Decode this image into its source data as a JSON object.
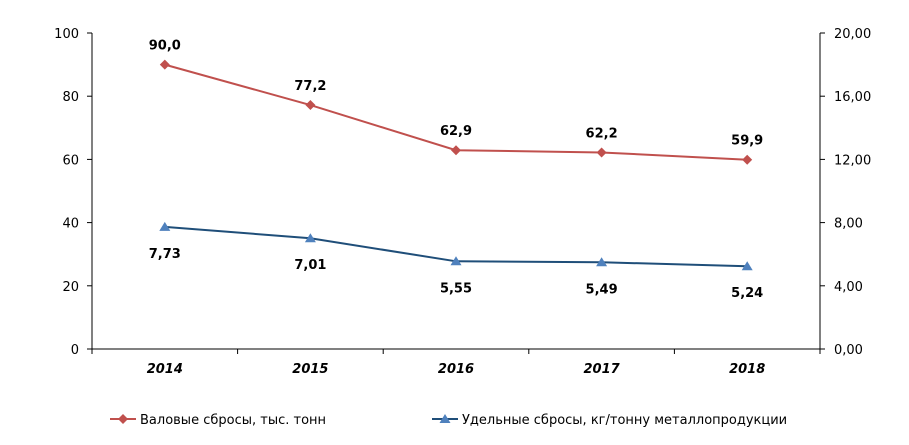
{
  "chart_data": {
    "type": "line",
    "categories": [
      "2014",
      "2015",
      "2016",
      "2017",
      "2018"
    ],
    "y_left": {
      "range": [
        0,
        100
      ],
      "ticks": [
        "0",
        "20",
        "40",
        "60",
        "80",
        "100"
      ]
    },
    "y_right": {
      "range": [
        0,
        20
      ],
      "ticks": [
        "0,00",
        "4,00",
        "8,00",
        "12,00",
        "16,00",
        "20,00"
      ]
    },
    "series": [
      {
        "name": "Валовые сбросы, тыс. тонн",
        "axis": "left",
        "color": "#C0504D",
        "marker": "diamond",
        "values": [
          90.0,
          77.2,
          62.9,
          62.2,
          59.9
        ],
        "labels": [
          "90,0",
          "77,2",
          "62,9",
          "62,2",
          "59,9"
        ]
      },
      {
        "name": "Удельные сбросы, кг/тонну металлопродукции",
        "axis": "right",
        "color": "#1F4E79",
        "marker_color": "#4F81BD",
        "marker": "triangle",
        "values": [
          7.73,
          7.01,
          5.55,
          5.49,
          5.24
        ],
        "labels": [
          "7,73",
          "7,01",
          "5,55",
          "5,49",
          "5,24"
        ]
      }
    ],
    "legend_position": "bottom",
    "grid": false
  }
}
